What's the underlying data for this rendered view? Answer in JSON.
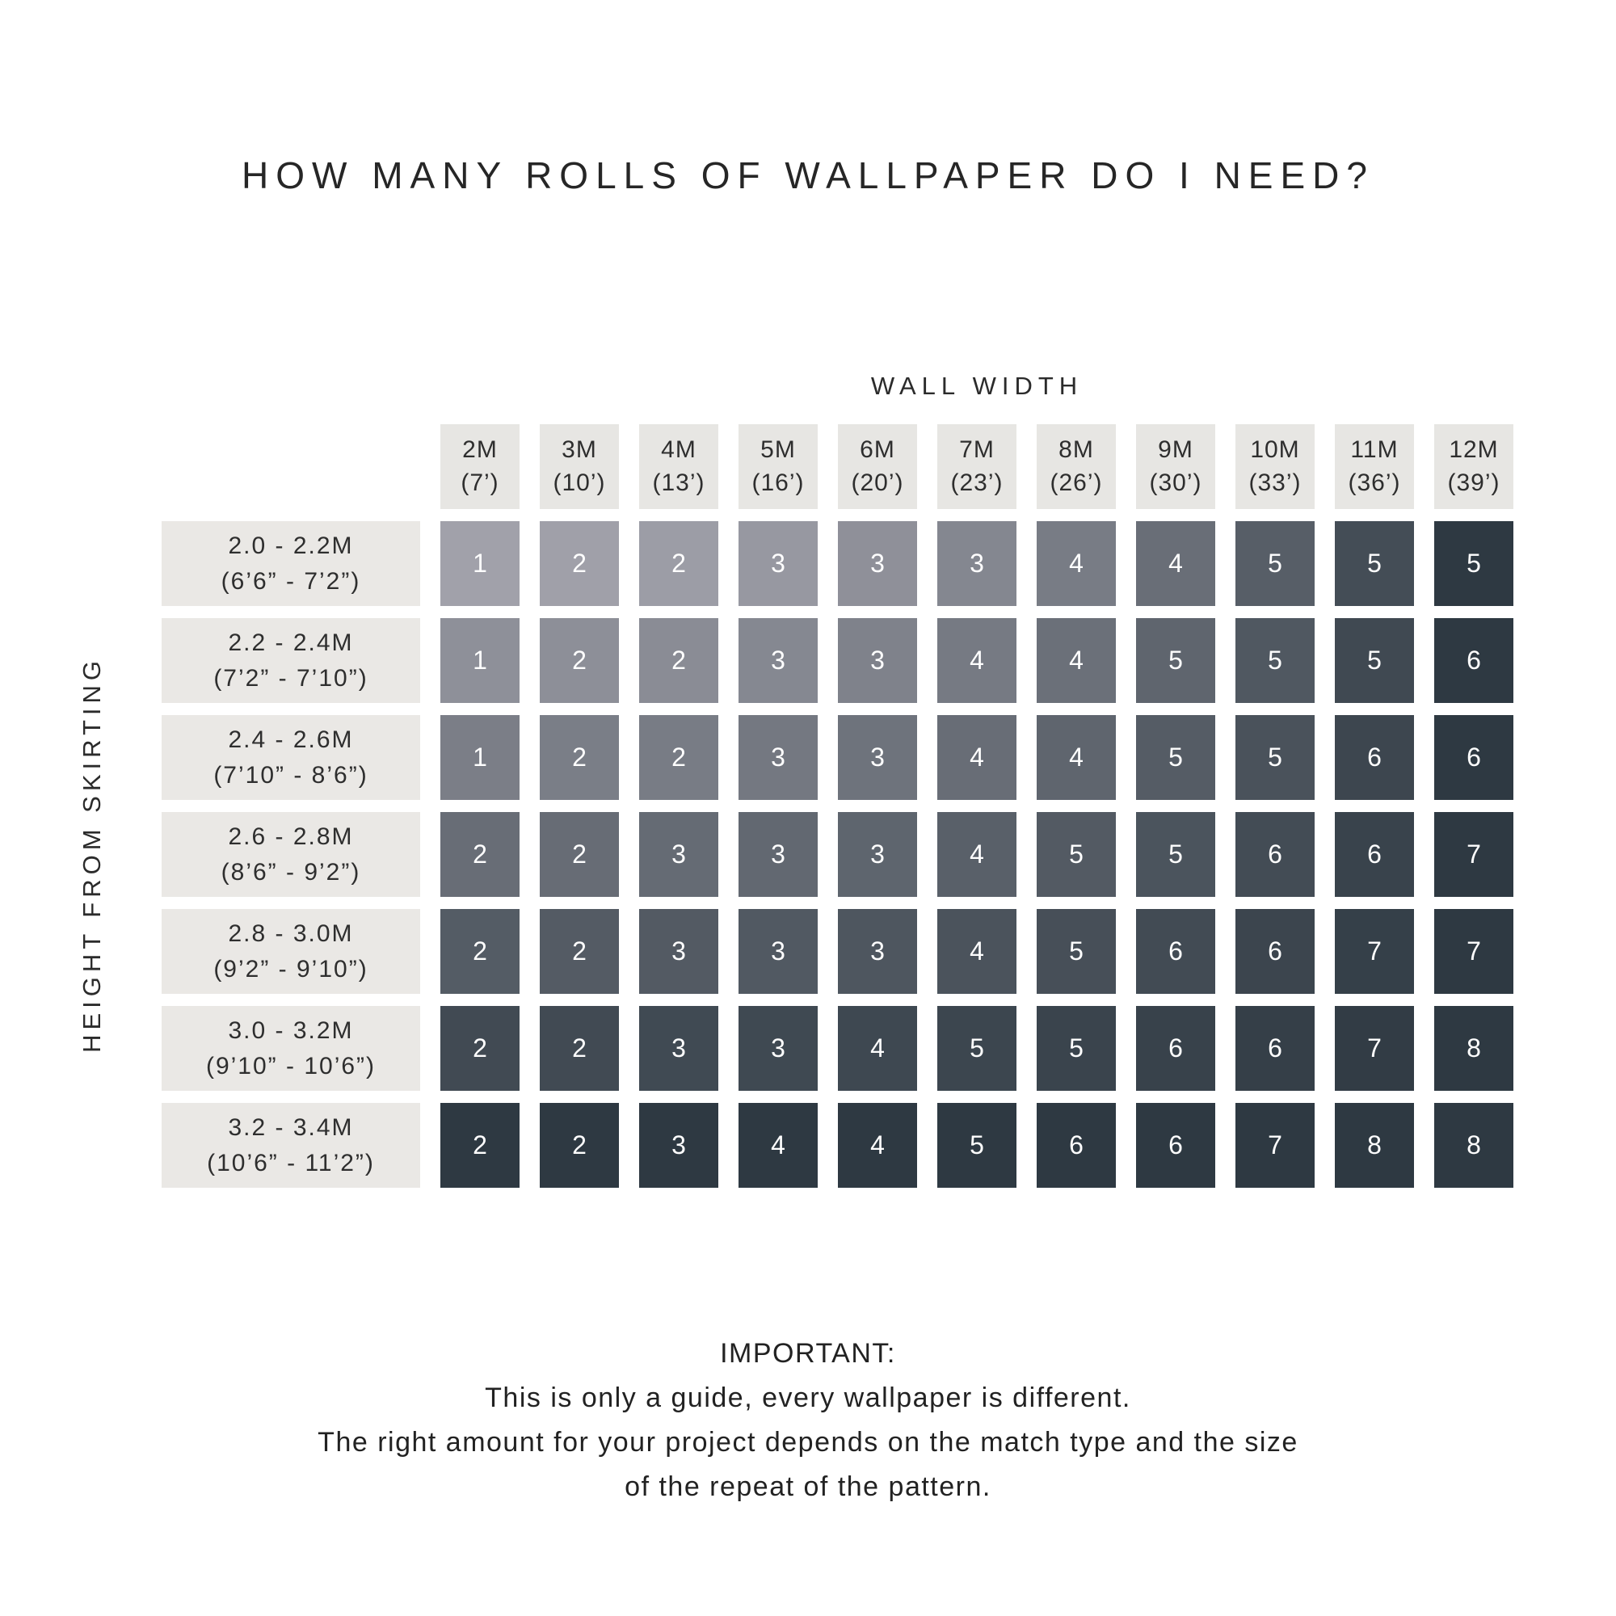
{
  "title": "HOW MANY ROLLS OF WALLPAPER DO I NEED?",
  "chart_data": {
    "type": "heatmap",
    "title": "HOW MANY ROLLS OF WALLPAPER DO I NEED?",
    "x_axis_label": "WALL WIDTH",
    "y_axis_label": "HEIGHT FROM SKIRTING",
    "columns": [
      {
        "m": "2M",
        "ft": "(7’)"
      },
      {
        "m": "3M",
        "ft": "(10’)"
      },
      {
        "m": "4M",
        "ft": "(13’)"
      },
      {
        "m": "5M",
        "ft": "(16’)"
      },
      {
        "m": "6M",
        "ft": "(20’)"
      },
      {
        "m": "7M",
        "ft": "(23’)"
      },
      {
        "m": "8M",
        "ft": "(26’)"
      },
      {
        "m": "9M",
        "ft": "(30’)"
      },
      {
        "m": "10M",
        "ft": "(33’)"
      },
      {
        "m": "11M",
        "ft": "(36’)"
      },
      {
        "m": "12M",
        "ft": "(39’)"
      }
    ],
    "rows": [
      {
        "m": "2.0 - 2.2M",
        "ft": "(6’6” - 7’2”)"
      },
      {
        "m": "2.2 - 2.4M",
        "ft": "(7’2” - 7’10”)"
      },
      {
        "m": "2.4 - 2.6M",
        "ft": "(7’10” - 8’6”)"
      },
      {
        "m": "2.6 - 2.8M",
        "ft": "(8’6” - 9’2”)"
      },
      {
        "m": "2.8 - 3.0M",
        "ft": "(9’2” - 9’10”)"
      },
      {
        "m": "3.0 - 3.2M",
        "ft": "(9’10” - 10’6”)"
      },
      {
        "m": "3.2 - 3.4M",
        "ft": "(10’6” - 11’2”)"
      }
    ],
    "values": [
      [
        1,
        2,
        2,
        3,
        3,
        3,
        4,
        4,
        5,
        5,
        5
      ],
      [
        1,
        2,
        2,
        3,
        3,
        4,
        4,
        5,
        5,
        5,
        6
      ],
      [
        1,
        2,
        2,
        3,
        3,
        4,
        4,
        5,
        5,
        6,
        6
      ],
      [
        2,
        2,
        3,
        3,
        3,
        4,
        5,
        5,
        6,
        6,
        7
      ],
      [
        2,
        2,
        3,
        3,
        3,
        4,
        5,
        6,
        6,
        7,
        7
      ],
      [
        2,
        2,
        3,
        3,
        4,
        5,
        5,
        6,
        6,
        7,
        8
      ],
      [
        2,
        2,
        3,
        4,
        4,
        5,
        6,
        6,
        7,
        8,
        8
      ]
    ],
    "legend": "none",
    "grid": "off"
  },
  "colors": {
    "cell_light": "#a1a1aa",
    "cell_dark": "#2e3942",
    "header_bg": "#e7e6e3",
    "row_label_bg": "#eae8e5",
    "cell_text": "#ffffff",
    "heading_text": "#262626"
  },
  "footer": {
    "heading": "IMPORTANT:",
    "lines": [
      "This is only a guide, every wallpaper is different.",
      "The right amount for your project depends on the match type and the size",
      "of the repeat of the pattern."
    ]
  }
}
